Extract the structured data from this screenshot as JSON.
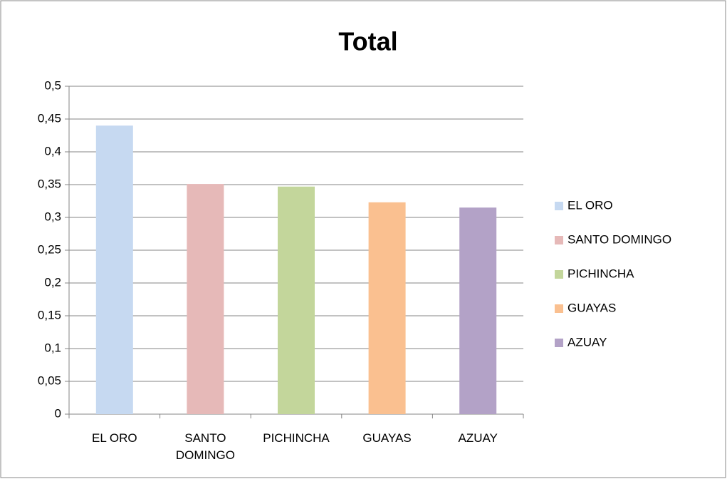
{
  "chart_data": {
    "type": "bar",
    "title": "Total",
    "categories": [
      "EL ORO",
      "SANTO DOMINGO",
      "PICHINCHA",
      "GUAYAS",
      "AZUAY"
    ],
    "values": [
      0.44,
      0.351,
      0.347,
      0.323,
      0.315
    ],
    "colors": [
      "#c6d9f1",
      "#e6b9b8",
      "#c3d69b",
      "#fac090",
      "#b3a2c7"
    ],
    "ylim": [
      0,
      0.5
    ],
    "yticks": [
      0,
      {
        "value": 0.05,
        "label": "0,05"
      },
      {
        "value": 0.1,
        "label": "0,1"
      },
      {
        "value": 0.15,
        "label": "0,15"
      },
      {
        "value": 0.2,
        "label": "0,2"
      },
      {
        "value": 0.25,
        "label": "0,25"
      },
      {
        "value": 0.3,
        "label": "0,3"
      },
      {
        "value": 0.35,
        "label": "0,35"
      },
      {
        "value": 0.4,
        "label": "0,4"
      },
      {
        "value": 0.45,
        "label": "0,45"
      },
      {
        "value": 0.5,
        "label": "0,5"
      }
    ],
    "grid": true,
    "legend": "right"
  }
}
